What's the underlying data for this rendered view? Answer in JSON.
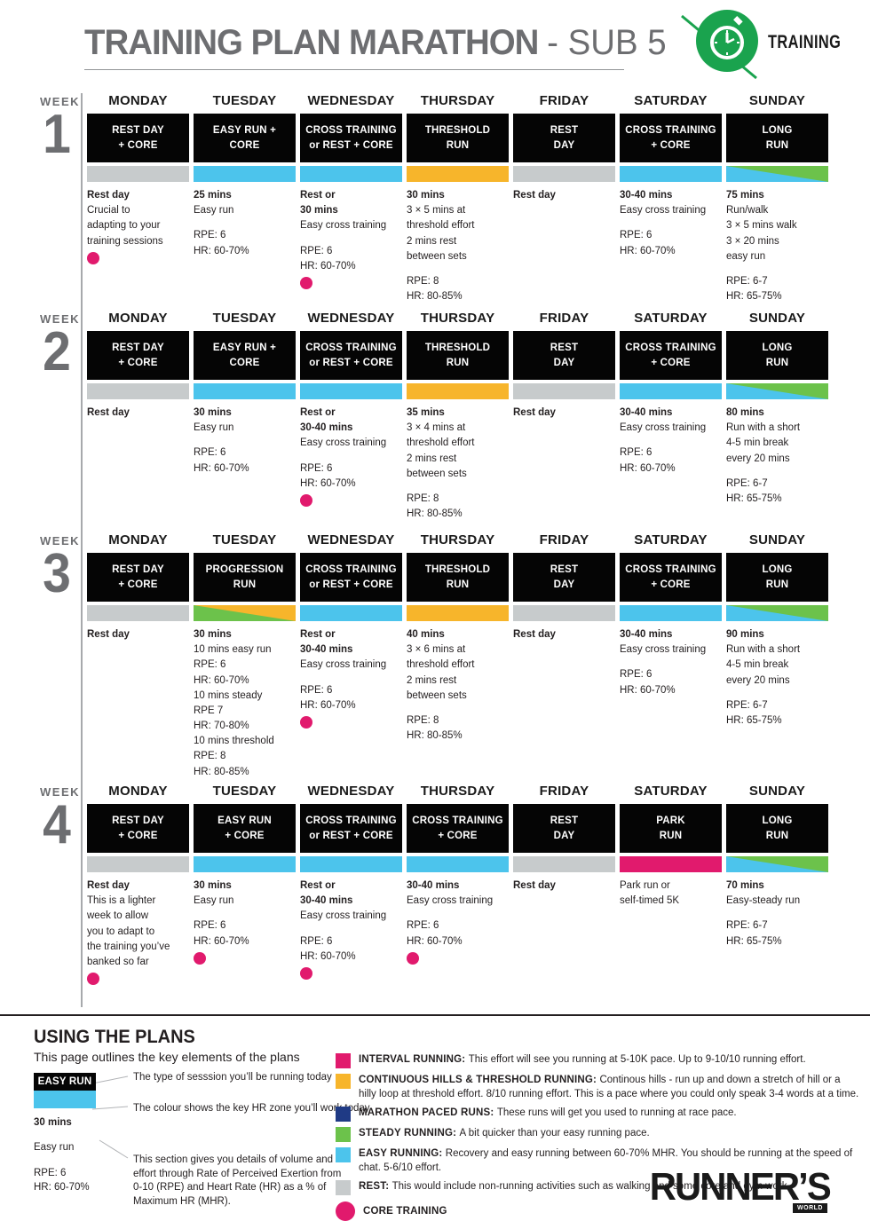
{
  "header": {
    "title": "TRAINING PLAN MARATHON ",
    "title_suffix": "- SUB 5",
    "badge_label": "TRAINING"
  },
  "days": [
    "MONDAY",
    "TUESDAY",
    "WEDNESDAY",
    "THURSDAY",
    "FRIDAY",
    "SATURDAY",
    "SUNDAY"
  ],
  "colors": {
    "easy": "#4cc4ec",
    "rest": "#c7cbcc",
    "threshold": "#f7b52b",
    "steady": "#6cc24b",
    "interval": "#e11a6d",
    "marathon": "#1f3a85",
    "core": "#e11a6d",
    "badge_green": "#1aa34e"
  },
  "weeks": [
    {
      "label": "WEEK",
      "number": "1",
      "cells": [
        {
          "type": [
            "REST DAY",
            "+ CORE"
          ],
          "bar": "rest",
          "core": true,
          "body": [
            {
              "t": "Rest day",
              "b": true
            },
            {
              "t": "Crucial to"
            },
            {
              "t": "adapting to your"
            },
            {
              "t": "training sessions"
            }
          ]
        },
        {
          "type": [
            "EASY RUN +",
            "CORE"
          ],
          "bar": "easy",
          "body": [
            {
              "t": "25 mins",
              "b": true
            },
            {
              "t": "Easy run"
            },
            {
              "gap": true
            },
            {
              "t": "RPE: 6"
            },
            {
              "t": "HR: 60-70%"
            }
          ]
        },
        {
          "type": [
            "CROSS TRAINING",
            "or REST + CORE"
          ],
          "bar": "easy",
          "core": true,
          "body": [
            {
              "t": "Rest or",
              "b": true
            },
            {
              "t": "30 mins",
              "b": true
            },
            {
              "t": "Easy cross training"
            },
            {
              "gap": true
            },
            {
              "t": "RPE: 6"
            },
            {
              "t": "HR: 60-70%"
            }
          ]
        },
        {
          "type": [
            "THRESHOLD",
            "RUN"
          ],
          "bar": "threshold",
          "body": [
            {
              "t": "30 mins",
              "b": true
            },
            {
              "t": "3 × 5 mins at"
            },
            {
              "t": "threshold effort"
            },
            {
              "t": "2 mins rest"
            },
            {
              "t": "between sets"
            },
            {
              "gap": true
            },
            {
              "t": "RPE: 8"
            },
            {
              "t": "HR: 80-85%"
            }
          ]
        },
        {
          "type": [
            "REST",
            "DAY"
          ],
          "bar": "rest",
          "body": [
            {
              "t": "Rest day",
              "b": true
            }
          ]
        },
        {
          "type": [
            "CROSS TRAINING",
            "+ CORE"
          ],
          "bar": "easy",
          "body": [
            {
              "t": "30-40 mins",
              "b": true
            },
            {
              "t": "Easy cross training"
            },
            {
              "gap": true
            },
            {
              "t": "RPE: 6"
            },
            {
              "t": "HR: 60-70%"
            }
          ]
        },
        {
          "type": [
            "LONG",
            "RUN"
          ],
          "bar": "long",
          "body": [
            {
              "t": "75 mins",
              "b": true
            },
            {
              "t": "Run/walk"
            },
            {
              "t": "3 × 5 mins walk"
            },
            {
              "t": "3 × 20 mins"
            },
            {
              "t": "easy run"
            },
            {
              "gap": true
            },
            {
              "t": "RPE: 6-7"
            },
            {
              "t": "HR: 65-75%"
            }
          ]
        }
      ]
    },
    {
      "label": "WEEK",
      "number": "2",
      "cells": [
        {
          "type": [
            "REST DAY",
            "+ CORE"
          ],
          "bar": "rest",
          "body": [
            {
              "t": "Rest day",
              "b": true
            }
          ]
        },
        {
          "type": [
            "EASY RUN +",
            "CORE"
          ],
          "bar": "easy",
          "body": [
            {
              "t": "30 mins",
              "b": true
            },
            {
              "t": "Easy run"
            },
            {
              "gap": true
            },
            {
              "t": "RPE: 6"
            },
            {
              "t": "HR: 60-70%"
            }
          ]
        },
        {
          "type": [
            "CROSS TRAINING",
            "or REST + CORE"
          ],
          "bar": "easy",
          "core": true,
          "body": [
            {
              "t": "Rest or",
              "b": true
            },
            {
              "t": "30-40 mins",
              "b": true
            },
            {
              "t": "Easy cross training"
            },
            {
              "gap": true
            },
            {
              "t": "RPE: 6"
            },
            {
              "t": "HR: 60-70%"
            }
          ]
        },
        {
          "type": [
            "THRESHOLD",
            "RUN"
          ],
          "bar": "threshold",
          "body": [
            {
              "t": "35 mins",
              "b": true
            },
            {
              "t": "3 × 4 mins at"
            },
            {
              "t": "threshold effort"
            },
            {
              "t": "2 mins rest"
            },
            {
              "t": "between sets"
            },
            {
              "gap": true
            },
            {
              "t": "RPE: 8"
            },
            {
              "t": "HR: 80-85%"
            }
          ]
        },
        {
          "type": [
            "REST",
            "DAY"
          ],
          "bar": "rest",
          "body": [
            {
              "t": "Rest day",
              "b": true
            }
          ]
        },
        {
          "type": [
            "CROSS TRAINING",
            "+ CORE"
          ],
          "bar": "easy",
          "body": [
            {
              "t": "30-40 mins",
              "b": true
            },
            {
              "t": "Easy cross training"
            },
            {
              "gap": true
            },
            {
              "t": "RPE: 6"
            },
            {
              "t": "HR: 60-70%"
            }
          ]
        },
        {
          "type": [
            "LONG",
            "RUN"
          ],
          "bar": "long",
          "body": [
            {
              "t": "80 mins",
              "b": true
            },
            {
              "t": "Run with a short"
            },
            {
              "t": "4-5 min break"
            },
            {
              "t": "every 20 mins"
            },
            {
              "gap": true
            },
            {
              "t": "RPE: 6-7"
            },
            {
              "t": "HR: 65-75%"
            }
          ]
        }
      ]
    },
    {
      "label": "WEEK",
      "number": "3",
      "cells": [
        {
          "type": [
            "REST DAY",
            "+ CORE"
          ],
          "bar": "rest",
          "body": [
            {
              "t": "Rest day",
              "b": true
            }
          ]
        },
        {
          "type": [
            "PROGRESSION",
            "RUN"
          ],
          "bar": "progression",
          "body": [
            {
              "t": "30 mins",
              "b": true
            },
            {
              "t": "10 mins easy run"
            },
            {
              "t": "RPE: 6"
            },
            {
              "t": "HR: 60-70%"
            },
            {
              "t": "10 mins steady"
            },
            {
              "t": "RPE 7"
            },
            {
              "t": "HR: 70-80%"
            },
            {
              "t": "10 mins threshold"
            },
            {
              "t": "RPE: 8"
            },
            {
              "t": "HR: 80-85%"
            }
          ]
        },
        {
          "type": [
            "CROSS TRAINING",
            "or REST + CORE"
          ],
          "bar": "easy",
          "core": true,
          "body": [
            {
              "t": "Rest or",
              "b": true
            },
            {
              "t": "30-40 mins",
              "b": true
            },
            {
              "t": "Easy cross training"
            },
            {
              "gap": true
            },
            {
              "t": "RPE: 6"
            },
            {
              "t": "HR: 60-70%"
            }
          ]
        },
        {
          "type": [
            "THRESHOLD",
            "RUN"
          ],
          "bar": "threshold",
          "body": [
            {
              "t": "40 mins",
              "b": true
            },
            {
              "t": "3 × 6 mins at"
            },
            {
              "t": "threshold effort"
            },
            {
              "t": "2 mins rest"
            },
            {
              "t": "between sets"
            },
            {
              "gap": true
            },
            {
              "t": "RPE: 8"
            },
            {
              "t": "HR: 80-85%"
            }
          ]
        },
        {
          "type": [
            "REST",
            "DAY"
          ],
          "bar": "rest",
          "body": [
            {
              "t": "Rest day",
              "b": true
            }
          ]
        },
        {
          "type": [
            "CROSS TRAINING",
            "+ CORE"
          ],
          "bar": "easy",
          "body": [
            {
              "t": "30-40 mins",
              "b": true
            },
            {
              "t": "Easy cross training"
            },
            {
              "gap": true
            },
            {
              "t": "RPE: 6"
            },
            {
              "t": "HR: 60-70%"
            }
          ]
        },
        {
          "type": [
            "LONG",
            "RUN"
          ],
          "bar": "long",
          "body": [
            {
              "t": "90 mins",
              "b": true
            },
            {
              "t": "Run with a short"
            },
            {
              "t": "4-5 min break"
            },
            {
              "t": "every 20 mins"
            },
            {
              "gap": true
            },
            {
              "t": "RPE: 6-7"
            },
            {
              "t": "HR: 65-75%"
            }
          ]
        }
      ]
    },
    {
      "label": "WEEK",
      "number": "4",
      "cells": [
        {
          "type": [
            "REST DAY",
            "+ CORE"
          ],
          "bar": "rest",
          "core": true,
          "body": [
            {
              "t": "Rest day",
              "b": true
            },
            {
              "t": "This is a lighter"
            },
            {
              "t": "week to allow"
            },
            {
              "t": "you to adapt to"
            },
            {
              "t": "the training you’ve"
            },
            {
              "t": "banked so far"
            }
          ]
        },
        {
          "type": [
            "EASY RUN",
            "+ CORE"
          ],
          "bar": "easy",
          "core": true,
          "body": [
            {
              "t": "30 mins",
              "b": true
            },
            {
              "t": "Easy run"
            },
            {
              "gap": true
            },
            {
              "t": "RPE: 6"
            },
            {
              "t": "HR: 60-70%"
            }
          ]
        },
        {
          "type": [
            "CROSS TRAINING",
            "or REST + CORE"
          ],
          "bar": "easy",
          "core": true,
          "body": [
            {
              "t": "Rest or",
              "b": true
            },
            {
              "t": "30-40 mins",
              "b": true
            },
            {
              "t": "Easy cross training"
            },
            {
              "gap": true
            },
            {
              "t": "RPE: 6"
            },
            {
              "t": "HR: 60-70%"
            }
          ]
        },
        {
          "type": [
            "CROSS TRAINING",
            "+ CORE"
          ],
          "bar": "easy",
          "core": true,
          "body": [
            {
              "t": "30-40 mins",
              "b": true
            },
            {
              "t": "Easy cross training"
            },
            {
              "gap": true
            },
            {
              "t": "RPE: 6"
            },
            {
              "t": "HR: 60-70%"
            }
          ]
        },
        {
          "type": [
            "REST",
            "DAY"
          ],
          "bar": "rest",
          "body": [
            {
              "t": "Rest day",
              "b": true
            }
          ]
        },
        {
          "type": [
            "PARK",
            "RUN"
          ],
          "bar": "interval",
          "body": [
            {
              "t": "Park run or"
            },
            {
              "t": "self-timed 5K"
            }
          ]
        },
        {
          "type": [
            "LONG",
            "RUN"
          ],
          "bar": "long",
          "body": [
            {
              "t": "70 mins",
              "b": true
            },
            {
              "t": "Easy-steady run"
            },
            {
              "gap": true
            },
            {
              "t": "RPE: 6-7"
            },
            {
              "t": "HR: 65-75%"
            }
          ]
        }
      ]
    }
  ],
  "using_plans": {
    "heading": "USING THE PLANS",
    "subheading": "This page outlines the key elements of the plans",
    "example": {
      "type": "EASY RUN",
      "duration": "30 mins",
      "session": "Easy run",
      "rpe": "RPE: 6",
      "hr": "HR: 60-70%"
    },
    "annotations": [
      "The type of sesssion you’ll be running today",
      "The colour shows the key HR zone you’ll work today",
      "This section gives you details of volume and effort through Rate of Perceived Exertion from 0-10 (RPE) and Heart Rate (HR) as a % of Maximum HR (MHR)."
    ]
  },
  "legend": {
    "items": [
      {
        "color": "interval",
        "label": "INTERVAL RUNNING:",
        "text": "This effort will see you running at 5-10K pace. Up to 9-10/10 running effort."
      },
      {
        "color": "threshold",
        "label": "CONTINUOUS HILLS & THRESHOLD RUNNING:",
        "text": "Continous hills - run up and down a stretch of hill or a hilly loop at threshold effort. 8/10 running effort. This is a pace where you could only speak 3-4 words at a time."
      },
      {
        "color": "marathon",
        "label": "MARATHON PACED RUNS:",
        "text": "These runs will get you used to running at race pace."
      },
      {
        "color": "steady",
        "label": "STEADY RUNNING:",
        "text": "A bit quicker than your easy running pace."
      },
      {
        "color": "easy",
        "label": "EASY RUNNING:",
        "text": "Recovery and easy running between 60-70% MHR. You should be running at the speed of chat. 5-6/10 effort."
      },
      {
        "color": "rest",
        "label": "REST:",
        "text": "This would include non-running activities such as walking and some core and gym work."
      }
    ],
    "core_label": "CORE TRAINING"
  },
  "brand": {
    "name": "RUNNER’S",
    "sub": "WORLD"
  }
}
